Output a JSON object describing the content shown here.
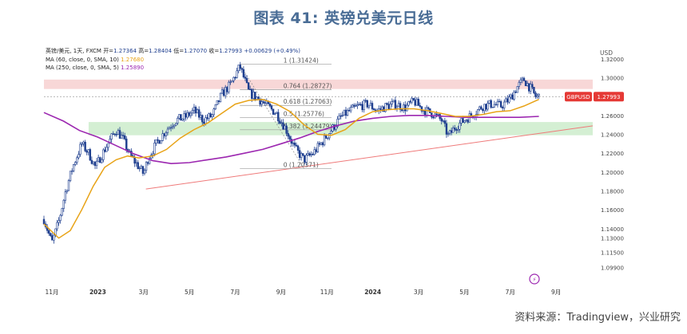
{
  "title": "图表 41: 英镑兑美元日线",
  "source": "资料来源：Tradingview，兴业研究",
  "chart_data": {
    "type": "candlestick",
    "symbol_line": "英镑/美元, 1天, FXCM",
    "ohlc": {
      "open_label": "开=",
      "open": "1.27364",
      "high_label": "高=",
      "high": "1.28404",
      "low_label": "低=",
      "low": "1.27070",
      "close_label": "收=",
      "close": "1.27993",
      "change": "+0.00629 (+0.49%)"
    },
    "ma_legend": [
      {
        "label": "MA (60, close, 0, SMA, 10)",
        "value": "1.27680",
        "color": "#e8a317"
      },
      {
        "label": "MA (250, close, 0, SMA, 5)",
        "value": "1.25890",
        "color": "#9c27b0"
      }
    ],
    "currency": "USD",
    "price_tag": {
      "symbol": "GBPUSD",
      "value": "1.27993",
      "color": "#e53935"
    },
    "ylim": [
      1.085,
      1.335
    ],
    "y_ticks": [
      "1.32000",
      "1.30000",
      "1.28000",
      "1.26000",
      "1.24000",
      "1.22000",
      "1.20000",
      "1.18000",
      "1.16000",
      "1.14000",
      "1.13000",
      "1.11500",
      "1.09900"
    ],
    "y_tick_values": [
      1.32,
      1.3,
      1.28,
      1.26,
      1.24,
      1.22,
      1.2,
      1.18,
      1.16,
      1.14,
      1.13,
      1.115,
      1.099
    ],
    "x_ticks": [
      {
        "label": "11月",
        "t": 0.0,
        "bold": false
      },
      {
        "label": "2023",
        "t": 2.0,
        "bold": true
      },
      {
        "label": "3月",
        "t": 4.0,
        "bold": false
      },
      {
        "label": "5月",
        "t": 6.0,
        "bold": false
      },
      {
        "label": "7月",
        "t": 8.0,
        "bold": false
      },
      {
        "label": "9月",
        "t": 10.0,
        "bold": false
      },
      {
        "label": "11月",
        "t": 12.0,
        "bold": false
      },
      {
        "label": "2024",
        "t": 14.0,
        "bold": true
      },
      {
        "label": "3月",
        "t": 16.0,
        "bold": false
      },
      {
        "label": "5月",
        "t": 18.0,
        "bold": false
      },
      {
        "label": "7月",
        "t": 20.0,
        "bold": false
      },
      {
        "label": "9月",
        "t": 22.0,
        "bold": false
      }
    ],
    "xlim": [
      -0.35,
      23.6
    ],
    "price_path": [
      [
        -0.35,
        1.15
      ],
      [
        0.0,
        1.125
      ],
      [
        0.3,
        1.148
      ],
      [
        0.6,
        1.18
      ],
      [
        0.9,
        1.205
      ],
      [
        1.3,
        1.23
      ],
      [
        1.6,
        1.22
      ],
      [
        1.9,
        1.205
      ],
      [
        2.1,
        1.215
      ],
      [
        2.4,
        1.228
      ],
      [
        2.8,
        1.245
      ],
      [
        3.1,
        1.235
      ],
      [
        3.4,
        1.218
      ],
      [
        3.8,
        1.205
      ],
      [
        4.0,
        1.198
      ],
      [
        4.2,
        1.215
      ],
      [
        4.6,
        1.232
      ],
      [
        5.0,
        1.245
      ],
      [
        5.4,
        1.255
      ],
      [
        5.8,
        1.258
      ],
      [
        6.2,
        1.265
      ],
      [
        6.6,
        1.255
      ],
      [
        7.0,
        1.26
      ],
      [
        7.4,
        1.282
      ],
      [
        7.8,
        1.293
      ],
      [
        8.2,
        1.312
      ],
      [
        8.6,
        1.284
      ],
      [
        9.0,
        1.278
      ],
      [
        9.4,
        1.27
      ],
      [
        9.8,
        1.262
      ],
      [
        10.2,
        1.246
      ],
      [
        10.6,
        1.225
      ],
      [
        11.0,
        1.213
      ],
      [
        11.4,
        1.22
      ],
      [
        11.8,
        1.232
      ],
      [
        12.2,
        1.245
      ],
      [
        12.6,
        1.258
      ],
      [
        13.0,
        1.265
      ],
      [
        13.4,
        1.27
      ],
      [
        13.8,
        1.272
      ],
      [
        14.2,
        1.265
      ],
      [
        14.6,
        1.27
      ],
      [
        15.0,
        1.272
      ],
      [
        15.4,
        1.268
      ],
      [
        15.8,
        1.275
      ],
      [
        16.2,
        1.266
      ],
      [
        16.6,
        1.262
      ],
      [
        17.0,
        1.255
      ],
      [
        17.3,
        1.238
      ],
      [
        17.6,
        1.248
      ],
      [
        18.0,
        1.255
      ],
      [
        18.4,
        1.262
      ],
      [
        18.8,
        1.27
      ],
      [
        19.2,
        1.272
      ],
      [
        19.6,
        1.27
      ],
      [
        20.0,
        1.278
      ],
      [
        20.3,
        1.29
      ],
      [
        20.6,
        1.298
      ],
      [
        20.9,
        1.288
      ],
      [
        21.1,
        1.28
      ],
      [
        21.25,
        1.28
      ]
    ],
    "ma60_path": [
      [
        -0.35,
        1.145
      ],
      [
        0.3,
        1.13
      ],
      [
        0.8,
        1.138
      ],
      [
        1.3,
        1.16
      ],
      [
        1.8,
        1.185
      ],
      [
        2.3,
        1.205
      ],
      [
        2.8,
        1.213
      ],
      [
        3.3,
        1.217
      ],
      [
        3.8,
        1.215
      ],
      [
        4.4,
        1.217
      ],
      [
        5.0,
        1.224
      ],
      [
        5.6,
        1.236
      ],
      [
        6.2,
        1.245
      ],
      [
        6.8,
        1.252
      ],
      [
        7.4,
        1.262
      ],
      [
        8.0,
        1.272
      ],
      [
        8.6,
        1.276
      ],
      [
        9.2,
        1.277
      ],
      [
        9.8,
        1.272
      ],
      [
        10.4,
        1.264
      ],
      [
        11.0,
        1.25
      ],
      [
        11.6,
        1.24
      ],
      [
        12.2,
        1.239
      ],
      [
        12.8,
        1.245
      ],
      [
        13.4,
        1.257
      ],
      [
        14.0,
        1.264
      ],
      [
        14.6,
        1.266
      ],
      [
        15.2,
        1.267
      ],
      [
        15.8,
        1.267
      ],
      [
        16.4,
        1.265
      ],
      [
        17.0,
        1.262
      ],
      [
        17.6,
        1.259
      ],
      [
        18.2,
        1.259
      ],
      [
        18.8,
        1.261
      ],
      [
        19.4,
        1.264
      ],
      [
        20.0,
        1.265
      ],
      [
        20.6,
        1.27
      ],
      [
        21.25,
        1.277
      ]
    ],
    "ma250_path": [
      [
        -0.35,
        1.263
      ],
      [
        0.5,
        1.254
      ],
      [
        1.2,
        1.244
      ],
      [
        2.0,
        1.237
      ],
      [
        2.8,
        1.228
      ],
      [
        3.6,
        1.219
      ],
      [
        4.4,
        1.212
      ],
      [
        5.2,
        1.209
      ],
      [
        6.0,
        1.21
      ],
      [
        6.8,
        1.213
      ],
      [
        7.6,
        1.216
      ],
      [
        8.4,
        1.22
      ],
      [
        9.2,
        1.224
      ],
      [
        10.0,
        1.23
      ],
      [
        10.8,
        1.236
      ],
      [
        11.6,
        1.243
      ],
      [
        12.4,
        1.249
      ],
      [
        13.2,
        1.254
      ],
      [
        14.0,
        1.257
      ],
      [
        14.8,
        1.259
      ],
      [
        15.6,
        1.26
      ],
      [
        16.4,
        1.26
      ],
      [
        17.2,
        1.259
      ],
      [
        18.0,
        1.258
      ],
      [
        18.8,
        1.258
      ],
      [
        19.6,
        1.258
      ],
      [
        20.4,
        1.258
      ],
      [
        21.25,
        1.259
      ]
    ],
    "fib_retracement": {
      "t_start": 8.2,
      "t_end": 12.2,
      "levels": [
        {
          "label": "1 (1.31424)",
          "value": 1.31424
        },
        {
          "label": "0.764 (1.28727)",
          "value": 1.28727
        },
        {
          "label": "0.618 (1.27063)",
          "value": 1.27063
        },
        {
          "label": "0.5 (1.25776)",
          "value": 1.25776
        },
        {
          "label": "0.382 (1.24479)",
          "value": 1.24479
        },
        {
          "label": "0 (1.20371)",
          "value": 1.20371
        }
      ]
    },
    "zones": [
      {
        "name": "resistance-zone",
        "y0": 1.288,
        "y1": 1.298,
        "t0": -0.35,
        "t1": 23.6,
        "color": "#f8d7d7"
      },
      {
        "name": "support-zone",
        "y0": 1.239,
        "y1": 1.253,
        "t0": 1.6,
        "t1": 23.6,
        "color": "#d4efd3"
      }
    ],
    "trendline": {
      "t0": 4.1,
      "y0": 1.182,
      "t1": 23.6,
      "y1": 1.249,
      "color": "#ef7a7a"
    },
    "dashed_price_line": 1.27993,
    "diag_segment": {
      "t0": 8.2,
      "y0": 1.31424,
      "t1": 11.0,
      "y1": 1.20371
    }
  }
}
